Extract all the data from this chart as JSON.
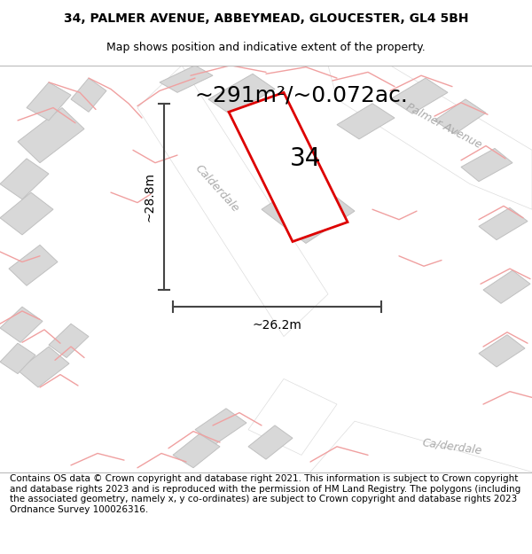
{
  "title": "34, PALMER AVENUE, ABBEYMEAD, GLOUCESTER, GL4 5BH",
  "subtitle": "Map shows position and indicative extent of the property.",
  "footer": "Contains OS data © Crown copyright and database right 2021. This information is subject to Crown copyright and database rights 2023 and is reproduced with the permission of HM Land Registry. The polygons (including the associated geometry, namely x, y co-ordinates) are subject to Crown copyright and database rights 2023 Ordnance Survey 100026316.",
  "area_label": "~291m²/~0.072ac.",
  "width_label": "~26.2m",
  "height_label": "~28.8m",
  "plot_number": "34",
  "map_bg": "#f0f0f0",
  "plot_outline_color": "#dd0000",
  "building_fill": "#d8d8d8",
  "building_edge": "#c0c0c0",
  "road_fill": "#ffffff",
  "pink_line_color": "#f0a0a0",
  "dim_line_color": "#444444",
  "road_text_color": "#aaaaaa",
  "title_fontsize": 10,
  "subtitle_fontsize": 9,
  "footer_fontsize": 7.5,
  "area_fontsize": 18,
  "plot_num_fontsize": 20,
  "dim_fontsize": 10
}
